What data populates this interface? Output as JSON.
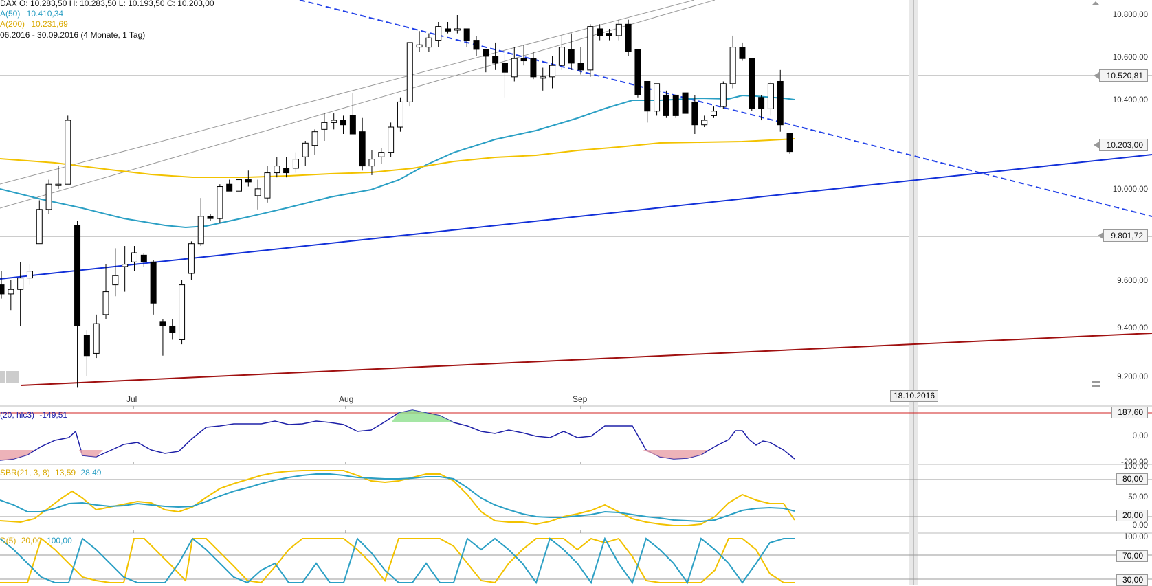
{
  "header": {
    "ohlc": "DAX   O: 10.283,50   H: 10.283,50   L: 10.193,50   C: 10.203,00",
    "sma50_label": "A(50)",
    "sma50_value": "10.410,34",
    "sma200_label": "A(200)",
    "sma200_value": "10.231,69",
    "range": "06.2016 - 30.09.2016 (4 Monate, 1 Tag)"
  },
  "colors": {
    "sma50": "#2a9fc4",
    "sma200": "#f2c200",
    "trend_dashed": "#1f3fe8",
    "trend_solid_blue": "#1230d8",
    "trend_red": "#a01010",
    "cci_line": "#1e20a8",
    "cci_pos_fill": "#8fe08f",
    "cci_neg_fill": "#e8a0a8",
    "stoch_fast": "#f2c200",
    "stoch_slow": "#2a9fc4"
  },
  "price_axis": {
    "ticks": [
      "10.800,00",
      "10.600,00",
      "10.400,00",
      "10.000,00",
      "9.600,00",
      "9.400,00",
      "9.200,00"
    ],
    "marked": [
      "10.520,81",
      "10.203,00",
      "9.801,72"
    ]
  },
  "months": [
    "Jul",
    "Aug",
    "Sep"
  ],
  "future_date": "18.10.2016",
  "cci": {
    "label": "(20, hlc3)",
    "value": "-149,51",
    "axis": [
      "187,60",
      "0,00",
      "-200,00"
    ]
  },
  "sbr": {
    "label": "SBR(21, 3, 8)",
    "v1": "13,59",
    "v2": "28,49",
    "axis": [
      "100,00",
      "80,00",
      "50,00",
      "20,00",
      "0,00"
    ]
  },
  "stoch": {
    "label": "D(5)",
    "v1": "20,00",
    "v2": "100,00",
    "axis": [
      "100,00",
      "70,00",
      "30,00"
    ]
  },
  "chart_data": {
    "type": "candlestick",
    "symbol": "DAX",
    "ylim": [
      9130,
      10880
    ],
    "overlays": [
      "SMA 50",
      "SMA 200",
      "trend lines"
    ],
    "candles": [
      {
        "o": 9620,
        "h": 9680,
        "l": 9560,
        "c": 9580
      },
      {
        "o": 9580,
        "h": 9640,
        "l": 9510,
        "c": 9600
      },
      {
        "o": 9600,
        "h": 9720,
        "l": 9440,
        "c": 9650
      },
      {
        "o": 9650,
        "h": 9710,
        "l": 9620,
        "c": 9680
      },
      {
        "o": 9800,
        "h": 9990,
        "l": 9800,
        "c": 9950
      },
      {
        "o": 9950,
        "h": 10080,
        "l": 9930,
        "c": 10060
      },
      {
        "o": 10060,
        "h": 10140,
        "l": 10040,
        "c": 10060
      },
      {
        "o": 10060,
        "h": 10360,
        "l": 10060,
        "c": 10340
      },
      {
        "o": 9880,
        "h": 9900,
        "l": 9170,
        "c": 9440
      },
      {
        "o": 9400,
        "h": 9420,
        "l": 9220,
        "c": 9310
      },
      {
        "o": 9320,
        "h": 9490,
        "l": 9300,
        "c": 9450
      },
      {
        "o": 9490,
        "h": 9710,
        "l": 9470,
        "c": 9590
      },
      {
        "o": 9620,
        "h": 9780,
        "l": 9570,
        "c": 9660
      },
      {
        "o": 9700,
        "h": 9790,
        "l": 9590,
        "c": 9710
      },
      {
        "o": 9720,
        "h": 9790,
        "l": 9680,
        "c": 9760
      },
      {
        "o": 9750,
        "h": 9760,
        "l": 9700,
        "c": 9720
      },
      {
        "o": 9720,
        "h": 9730,
        "l": 9490,
        "c": 9540
      },
      {
        "o": 9460,
        "h": 9470,
        "l": 9310,
        "c": 9440
      },
      {
        "o": 9440,
        "h": 9470,
        "l": 9380,
        "c": 9410
      },
      {
        "o": 9380,
        "h": 9640,
        "l": 9360,
        "c": 9620
      },
      {
        "o": 9670,
        "h": 9810,
        "l": 9640,
        "c": 9800
      },
      {
        "o": 9800,
        "h": 10000,
        "l": 9790,
        "c": 9920
      },
      {
        "o": 9920,
        "h": 9930,
        "l": 9900,
        "c": 9910
      },
      {
        "o": 9910,
        "h": 10060,
        "l": 9890,
        "c": 10050
      },
      {
        "o": 10060,
        "h": 10080,
        "l": 10030,
        "c": 10030
      },
      {
        "o": 10030,
        "h": 10150,
        "l": 10020,
        "c": 10080
      },
      {
        "o": 10080,
        "h": 10120,
        "l": 10050,
        "c": 10070
      },
      {
        "o": 10010,
        "h": 10080,
        "l": 9950,
        "c": 10040
      },
      {
        "o": 10000,
        "h": 10140,
        "l": 9980,
        "c": 10110
      },
      {
        "o": 10110,
        "h": 10180,
        "l": 10090,
        "c": 10140
      },
      {
        "o": 10130,
        "h": 10180,
        "l": 10090,
        "c": 10110
      },
      {
        "o": 10130,
        "h": 10200,
        "l": 10110,
        "c": 10170
      },
      {
        "o": 10180,
        "h": 10250,
        "l": 10140,
        "c": 10240
      },
      {
        "o": 10230,
        "h": 10300,
        "l": 10190,
        "c": 10290
      },
      {
        "o": 10300,
        "h": 10370,
        "l": 10250,
        "c": 10330
      },
      {
        "o": 10330,
        "h": 10370,
        "l": 10300,
        "c": 10340
      },
      {
        "o": 10340,
        "h": 10360,
        "l": 10280,
        "c": 10320
      },
      {
        "o": 10360,
        "h": 10460,
        "l": 10280,
        "c": 10280
      },
      {
        "o": 10290,
        "h": 10350,
        "l": 10120,
        "c": 10140
      },
      {
        "o": 10140,
        "h": 10210,
        "l": 10100,
        "c": 10170
      },
      {
        "o": 10180,
        "h": 10220,
        "l": 10150,
        "c": 10200
      },
      {
        "o": 10200,
        "h": 10330,
        "l": 10180,
        "c": 10310
      },
      {
        "o": 10310,
        "h": 10440,
        "l": 10290,
        "c": 10420
      },
      {
        "o": 10420,
        "h": 10680,
        "l": 10400,
        "c": 10680
      },
      {
        "o": 10660,
        "h": 10730,
        "l": 10640,
        "c": 10670
      },
      {
        "o": 10660,
        "h": 10720,
        "l": 10640,
        "c": 10700
      },
      {
        "o": 10690,
        "h": 10770,
        "l": 10660,
        "c": 10750
      },
      {
        "o": 10740,
        "h": 10770,
        "l": 10720,
        "c": 10730
      },
      {
        "o": 10740,
        "h": 10800,
        "l": 10720,
        "c": 10740
      },
      {
        "o": 10740,
        "h": 10740,
        "l": 10660,
        "c": 10690
      },
      {
        "o": 10690,
        "h": 10710,
        "l": 10620,
        "c": 10650
      },
      {
        "o": 10650,
        "h": 10650,
        "l": 10550,
        "c": 10620
      },
      {
        "o": 10620,
        "h": 10680,
        "l": 10560,
        "c": 10590
      },
      {
        "o": 10590,
        "h": 10630,
        "l": 10440,
        "c": 10550
      },
      {
        "o": 10530,
        "h": 10660,
        "l": 10510,
        "c": 10610
      },
      {
        "o": 10610,
        "h": 10670,
        "l": 10580,
        "c": 10600
      },
      {
        "o": 10610,
        "h": 10640,
        "l": 10520,
        "c": 10530
      },
      {
        "o": 10530,
        "h": 10570,
        "l": 10470,
        "c": 10530
      },
      {
        "o": 10530,
        "h": 10620,
        "l": 10480,
        "c": 10580
      },
      {
        "o": 10580,
        "h": 10710,
        "l": 10560,
        "c": 10660
      },
      {
        "o": 10650,
        "h": 10720,
        "l": 10560,
        "c": 10590
      },
      {
        "o": 10590,
        "h": 10660,
        "l": 10540,
        "c": 10560
      },
      {
        "o": 10560,
        "h": 10760,
        "l": 10530,
        "c": 10750
      },
      {
        "o": 10740,
        "h": 10760,
        "l": 10690,
        "c": 10710
      },
      {
        "o": 10720,
        "h": 10740,
        "l": 10690,
        "c": 10710
      },
      {
        "o": 10710,
        "h": 10780,
        "l": 10690,
        "c": 10760
      },
      {
        "o": 10760,
        "h": 10780,
        "l": 10620,
        "c": 10640
      },
      {
        "o": 10650,
        "h": 10650,
        "l": 10440,
        "c": 10450
      },
      {
        "o": 10510,
        "h": 10510,
        "l": 10330,
        "c": 10380
      },
      {
        "o": 10380,
        "h": 10500,
        "l": 10360,
        "c": 10500
      },
      {
        "o": 10450,
        "h": 10470,
        "l": 10350,
        "c": 10360
      },
      {
        "o": 10450,
        "h": 10450,
        "l": 10350,
        "c": 10360
      },
      {
        "o": 10460,
        "h": 10460,
        "l": 10370,
        "c": 10370
      },
      {
        "o": 10420,
        "h": 10450,
        "l": 10280,
        "c": 10320
      },
      {
        "o": 10320,
        "h": 10360,
        "l": 10310,
        "c": 10340
      },
      {
        "o": 10360,
        "h": 10400,
        "l": 10350,
        "c": 10380
      },
      {
        "o": 10400,
        "h": 10510,
        "l": 10390,
        "c": 10500
      },
      {
        "o": 10500,
        "h": 10710,
        "l": 10480,
        "c": 10660
      },
      {
        "o": 10660,
        "h": 10680,
        "l": 10600,
        "c": 10610
      },
      {
        "o": 10610,
        "h": 10610,
        "l": 10380,
        "c": 10390
      },
      {
        "o": 10440,
        "h": 10450,
        "l": 10340,
        "c": 10390
      },
      {
        "o": 10390,
        "h": 10510,
        "l": 10360,
        "c": 10500
      },
      {
        "o": 10510,
        "h": 10560,
        "l": 10290,
        "c": 10320
      },
      {
        "o": 10283.5,
        "h": 10283.5,
        "l": 10193.5,
        "c": 10203
      }
    ]
  }
}
